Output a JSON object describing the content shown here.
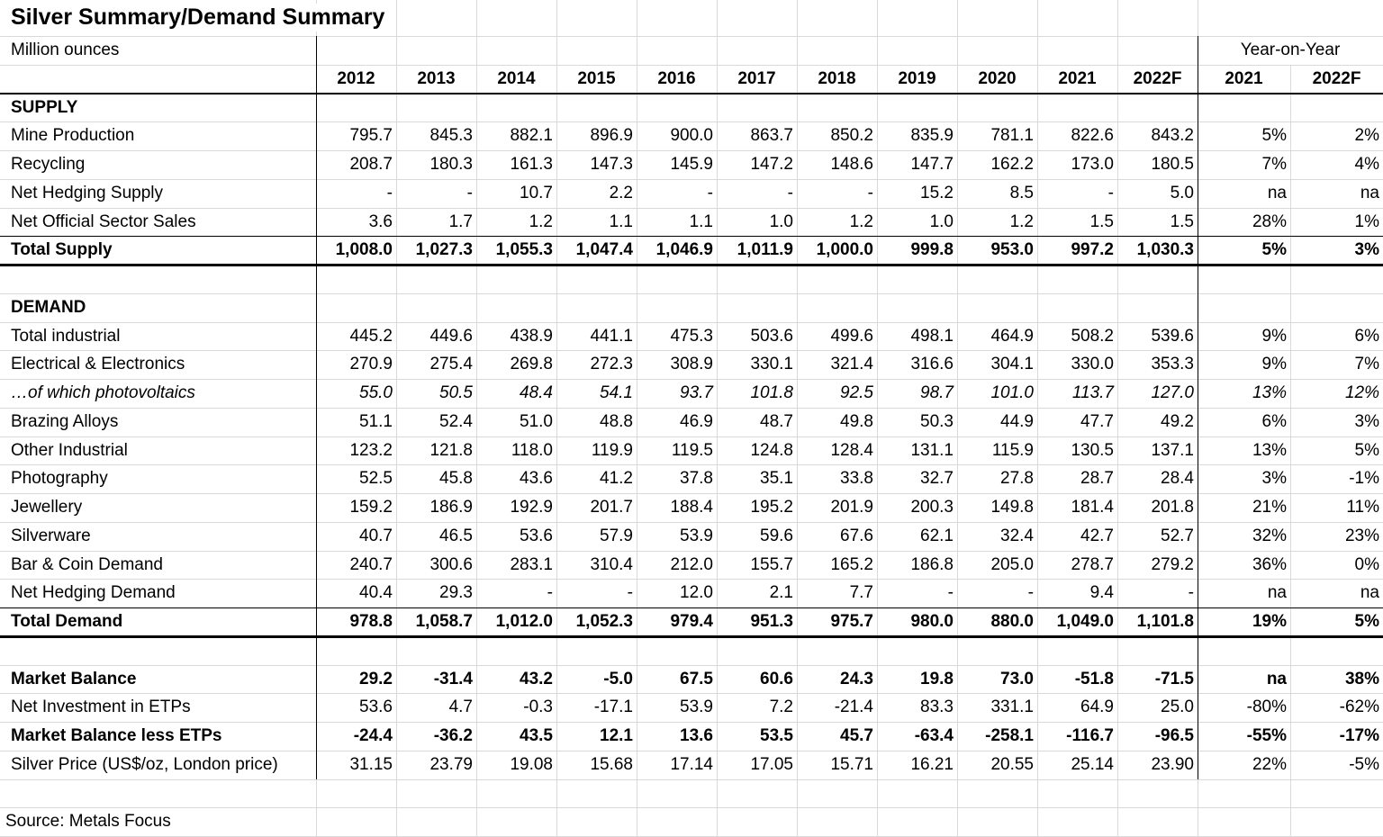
{
  "title": "Silver Summary/Demand Summary",
  "unit_label": "Million ounces",
  "yoy_label": "Year-on-Year",
  "columns": [
    "2012",
    "2013",
    "2014",
    "2015",
    "2016",
    "2017",
    "2018",
    "2019",
    "2020",
    "2021",
    "2022F",
    "2021",
    "2022F"
  ],
  "supply": {
    "heading": "SUPPLY",
    "rows": [
      {
        "label": "Mine Production",
        "emphasis": "normal",
        "cells": [
          "795.7",
          "845.3",
          "882.1",
          "896.9",
          "900.0",
          "863.7",
          "850.2",
          "835.9",
          "781.1",
          "822.6",
          "843.2",
          "5%",
          "2%"
        ]
      },
      {
        "label": "Recycling",
        "emphasis": "normal",
        "cells": [
          "208.7",
          "180.3",
          "161.3",
          "147.3",
          "145.9",
          "147.2",
          "148.6",
          "147.7",
          "162.2",
          "173.0",
          "180.5",
          "7%",
          "4%"
        ]
      },
      {
        "label": "Net Hedging Supply",
        "emphasis": "normal",
        "cells": [
          "-",
          "-",
          "10.7",
          "2.2",
          "-",
          "-",
          "-",
          "15.2",
          "8.5",
          "-",
          "5.0",
          "na",
          "na"
        ]
      },
      {
        "label": "Net Official Sector Sales",
        "emphasis": "normal",
        "cells": [
          "3.6",
          "1.7",
          "1.2",
          "1.1",
          "1.1",
          "1.0",
          "1.2",
          "1.0",
          "1.2",
          "1.5",
          "1.5",
          "28%",
          "1%"
        ]
      }
    ],
    "total": {
      "label": "Total Supply",
      "emphasis": "bold",
      "cells": [
        "1,008.0",
        "1,027.3",
        "1,055.3",
        "1,047.4",
        "1,046.9",
        "1,011.9",
        "1,000.0",
        "999.8",
        "953.0",
        "997.2",
        "1,030.3",
        "5%",
        "3%"
      ]
    }
  },
  "demand": {
    "heading": "DEMAND",
    "rows": [
      {
        "label": "Total industrial",
        "emphasis": "normal",
        "cells": [
          "445.2",
          "449.6",
          "438.9",
          "441.1",
          "475.3",
          "503.6",
          "499.6",
          "498.1",
          "464.9",
          "508.2",
          "539.6",
          "9%",
          "6%"
        ]
      },
      {
        "label": "Electrical & Electronics",
        "emphasis": "normal",
        "cells": [
          "270.9",
          "275.4",
          "269.8",
          "272.3",
          "308.9",
          "330.1",
          "321.4",
          "316.6",
          "304.1",
          "330.0",
          "353.3",
          "9%",
          "7%"
        ]
      },
      {
        "label": "…of which photovoltaics",
        "emphasis": "italic",
        "cells": [
          "55.0",
          "50.5",
          "48.4",
          "54.1",
          "93.7",
          "101.8",
          "92.5",
          "98.7",
          "101.0",
          "113.7",
          "127.0",
          "13%",
          "12%"
        ]
      },
      {
        "label": "Brazing Alloys",
        "emphasis": "normal",
        "cells": [
          "51.1",
          "52.4",
          "51.0",
          "48.8",
          "46.9",
          "48.7",
          "49.8",
          "50.3",
          "44.9",
          "47.7",
          "49.2",
          "6%",
          "3%"
        ]
      },
      {
        "label": "Other Industrial",
        "emphasis": "normal",
        "cells": [
          "123.2",
          "121.8",
          "118.0",
          "119.9",
          "119.5",
          "124.8",
          "128.4",
          "131.1",
          "115.9",
          "130.5",
          "137.1",
          "13%",
          "5%"
        ]
      },
      {
        "label": "Photography",
        "emphasis": "normal",
        "cells": [
          "52.5",
          "45.8",
          "43.6",
          "41.2",
          "37.8",
          "35.1",
          "33.8",
          "32.7",
          "27.8",
          "28.7",
          "28.4",
          "3%",
          "-1%"
        ]
      },
      {
        "label": "Jewellery",
        "emphasis": "normal",
        "cells": [
          "159.2",
          "186.9",
          "192.9",
          "201.7",
          "188.4",
          "195.2",
          "201.9",
          "200.3",
          "149.8",
          "181.4",
          "201.8",
          "21%",
          "11%"
        ]
      },
      {
        "label": "Silverware",
        "emphasis": "normal",
        "cells": [
          "40.7",
          "46.5",
          "53.6",
          "57.9",
          "53.9",
          "59.6",
          "67.6",
          "62.1",
          "32.4",
          "42.7",
          "52.7",
          "32%",
          "23%"
        ]
      },
      {
        "label": "Bar & Coin Demand",
        "emphasis": "normal",
        "cells": [
          "240.7",
          "300.6",
          "283.1",
          "310.4",
          "212.0",
          "155.7",
          "165.2",
          "186.8",
          "205.0",
          "278.7",
          "279.2",
          "36%",
          "0%"
        ]
      },
      {
        "label": "Net Hedging Demand",
        "emphasis": "normal",
        "cells": [
          "40.4",
          "29.3",
          "-",
          "-",
          "12.0",
          "2.1",
          "7.7",
          "-",
          "-",
          "9.4",
          "-",
          "na",
          "na"
        ]
      }
    ],
    "total": {
      "label": "Total Demand",
      "emphasis": "bold",
      "cells": [
        "978.8",
        "1,058.7",
        "1,012.0",
        "1,052.3",
        "979.4",
        "951.3",
        "975.7",
        "980.0",
        "880.0",
        "1,049.0",
        "1,101.8",
        "19%",
        "5%"
      ]
    }
  },
  "balance": {
    "rows": [
      {
        "label": "Market Balance",
        "emphasis": "bold",
        "cells": [
          "29.2",
          "-31.4",
          "43.2",
          "-5.0",
          "67.5",
          "60.6",
          "24.3",
          "19.8",
          "73.0",
          "-51.8",
          "-71.5",
          "na",
          "38%"
        ]
      },
      {
        "label": "Net Investment in ETPs",
        "emphasis": "normal",
        "cells": [
          "53.6",
          "4.7",
          "-0.3",
          "-17.1",
          "53.9",
          "7.2",
          "-21.4",
          "83.3",
          "331.1",
          "64.9",
          "25.0",
          "-80%",
          "-62%"
        ]
      },
      {
        "label": "Market Balance less ETPs",
        "emphasis": "bold",
        "cells": [
          "-24.4",
          "-36.2",
          "43.5",
          "12.1",
          "13.6",
          "53.5",
          "45.7",
          "-63.4",
          "-258.1",
          "-116.7",
          "-96.5",
          "-55%",
          "-17%"
        ]
      },
      {
        "label": "Silver Price (US$/oz, London price)",
        "emphasis": "normal",
        "cells": [
          "31.15",
          "23.79",
          "19.08",
          "15.68",
          "17.14",
          "17.05",
          "15.71",
          "16.21",
          "20.55",
          "25.14",
          "23.90",
          "22%",
          "-5%"
        ]
      }
    ]
  },
  "source": "Source: Metals Focus"
}
